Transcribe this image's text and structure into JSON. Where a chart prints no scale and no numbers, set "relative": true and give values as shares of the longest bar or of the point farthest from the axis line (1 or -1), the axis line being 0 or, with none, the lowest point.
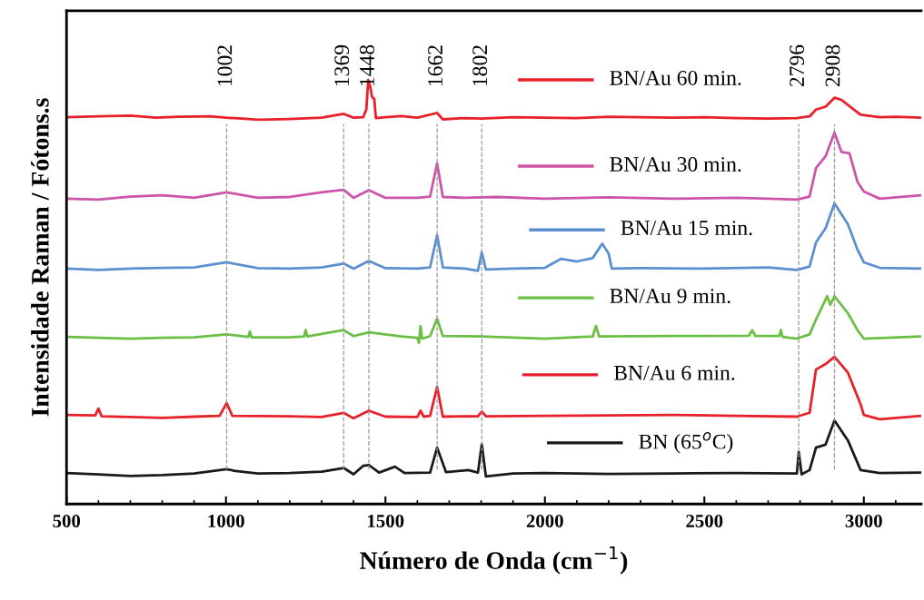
{
  "chart_data": {
    "type": "line",
    "relative": true,
    "xlabel": "Número de Onda (cm$^{−1}$)",
    "ylabel": "Intensidade Raman / Fótons.s",
    "xlim": [
      500,
      3180
    ],
    "xticks": [
      500,
      1000,
      1500,
      2000,
      2500,
      3000
    ],
    "grid": false,
    "legend": "right",
    "tick_labels": "x",
    "series": [
      {
        "name": "BN/Au 60 min.",
        "color": "#e8202a",
        "x": [
          500,
          600,
          700,
          780,
          850,
          950,
          1000,
          1050,
          1100,
          1200,
          1300,
          1369,
          1400,
          1430,
          1440,
          1446,
          1452,
          1458,
          1465,
          1470,
          1500,
          1550,
          1600,
          1662,
          1680,
          1750,
          1802,
          1900,
          2000,
          2100,
          2200,
          2300,
          2400,
          2500,
          2600,
          2700,
          2790,
          2830,
          2850,
          2880,
          2908,
          2930,
          2960,
          2990,
          3050,
          3100,
          3180
        ],
        "values": [
          0.912,
          0.914,
          0.916,
          0.911,
          0.913,
          0.914,
          0.911,
          0.909,
          0.906,
          0.908,
          0.911,
          0.92,
          0.911,
          0.912,
          0.93,
          1.0,
          0.985,
          0.96,
          0.955,
          0.91,
          0.912,
          0.915,
          0.911,
          0.922,
          0.907,
          0.91,
          0.909,
          0.912,
          0.911,
          0.91,
          0.913,
          0.912,
          0.911,
          0.912,
          0.91,
          0.909,
          0.91,
          0.914,
          0.93,
          0.937,
          0.958,
          0.953,
          0.935,
          0.918,
          0.912,
          0.913,
          0.911
        ]
      },
      {
        "name": "BN/Au 30 min.",
        "color": "#cc55aa",
        "x": [
          500,
          600,
          700,
          800,
          900,
          1002,
          1100,
          1200,
          1300,
          1369,
          1400,
          1448,
          1500,
          1600,
          1640,
          1662,
          1680,
          1750,
          1850,
          2000,
          2200,
          2400,
          2600,
          2700,
          2790,
          2830,
          2850,
          2880,
          2908,
          2930,
          2955,
          2980,
          3000,
          3050,
          3180
        ],
        "values": [
          0.72,
          0.718,
          0.725,
          0.728,
          0.722,
          0.735,
          0.722,
          0.724,
          0.735,
          0.741,
          0.722,
          0.74,
          0.722,
          0.722,
          0.725,
          0.803,
          0.724,
          0.722,
          0.724,
          0.72,
          0.723,
          0.72,
          0.722,
          0.72,
          0.718,
          0.725,
          0.792,
          0.82,
          0.876,
          0.83,
          0.827,
          0.76,
          0.737,
          0.72,
          0.728
        ]
      },
      {
        "name": "BN/Au 15 min.",
        "color": "#5b8fd0",
        "x": [
          500,
          600,
          700,
          800,
          900,
          1002,
          1100,
          1200,
          1300,
          1369,
          1400,
          1448,
          1500,
          1600,
          1640,
          1662,
          1680,
          1750,
          1790,
          1802,
          1815,
          1900,
          2000,
          2050,
          2100,
          2150,
          2180,
          2200,
          2210,
          2300,
          2500,
          2700,
          2790,
          2830,
          2850,
          2880,
          2908,
          2950,
          2980,
          3000,
          3050,
          3180
        ],
        "values": [
          0.555,
          0.552,
          0.555,
          0.557,
          0.558,
          0.57,
          0.556,
          0.555,
          0.558,
          0.567,
          0.555,
          0.573,
          0.556,
          0.555,
          0.558,
          0.634,
          0.558,
          0.555,
          0.55,
          0.593,
          0.553,
          0.555,
          0.557,
          0.578,
          0.572,
          0.58,
          0.614,
          0.59,
          0.555,
          0.556,
          0.555,
          0.558,
          0.552,
          0.56,
          0.617,
          0.65,
          0.709,
          0.66,
          0.6,
          0.57,
          0.557,
          0.555
        ]
      },
      {
        "name": "BN/Au 9 min.",
        "color": "#6bbf45",
        "x": [
          500,
          600,
          700,
          800,
          900,
          1002,
          1070,
          1075,
          1080,
          1200,
          1245,
          1250,
          1255,
          1369,
          1400,
          1448,
          1550,
          1600,
          1605,
          1610,
          1615,
          1640,
          1662,
          1680,
          1800,
          2000,
          2150,
          2160,
          2170,
          2400,
          2640,
          2650,
          2660,
          2735,
          2740,
          2745,
          2790,
          2830,
          2850,
          2885,
          2895,
          2908,
          2950,
          2980,
          3000,
          3180
        ],
        "values": [
          0.394,
          0.392,
          0.39,
          0.392,
          0.393,
          0.4,
          0.394,
          0.407,
          0.393,
          0.393,
          0.395,
          0.41,
          0.395,
          0.41,
          0.396,
          0.405,
          0.395,
          0.392,
          0.38,
          0.42,
          0.39,
          0.396,
          0.437,
          0.396,
          0.395,
          0.39,
          0.395,
          0.42,
          0.395,
          0.396,
          0.397,
          0.41,
          0.396,
          0.396,
          0.41,
          0.394,
          0.39,
          0.4,
          0.435,
          0.49,
          0.47,
          0.49,
          0.45,
          0.41,
          0.39,
          0.395
        ]
      },
      {
        "name": "BN/Au 6 min.",
        "color": "#e8202a",
        "x": [
          500,
          590,
          600,
          610,
          700,
          800,
          900,
          980,
          1002,
          1020,
          1200,
          1300,
          1369,
          1400,
          1448,
          1500,
          1600,
          1610,
          1620,
          1640,
          1662,
          1680,
          1790,
          1802,
          1815,
          2000,
          2200,
          2400,
          2600,
          2790,
          2830,
          2850,
          2880,
          2908,
          2950,
          2990,
          3000,
          3050,
          3180
        ],
        "values": [
          0.21,
          0.209,
          0.225,
          0.207,
          0.205,
          0.203,
          0.206,
          0.208,
          0.238,
          0.208,
          0.207,
          0.205,
          0.215,
          0.202,
          0.22,
          0.206,
          0.205,
          0.22,
          0.206,
          0.208,
          0.276,
          0.206,
          0.207,
          0.218,
          0.207,
          0.208,
          0.209,
          0.21,
          0.208,
          0.206,
          0.215,
          0.317,
          0.33,
          0.347,
          0.31,
          0.235,
          0.21,
          0.2,
          0.208
        ]
      },
      {
        "name": "BN (65$^{o}$C)",
        "color": "#1a1a1a",
        "x": [
          500,
          600,
          700,
          800,
          900,
          1002,
          1030,
          1100,
          1200,
          1300,
          1369,
          1400,
          1430,
          1448,
          1480,
          1530,
          1560,
          1640,
          1662,
          1690,
          1760,
          1790,
          1802,
          1815,
          1900,
          2000,
          2200,
          2400,
          2600,
          2790,
          2796,
          2805,
          2830,
          2850,
          2880,
          2908,
          2950,
          2990,
          3050,
          3180
        ],
        "values": [
          0.073,
          0.07,
          0.066,
          0.068,
          0.072,
          0.082,
          0.078,
          0.072,
          0.073,
          0.076,
          0.085,
          0.07,
          0.09,
          0.092,
          0.074,
          0.088,
          0.073,
          0.074,
          0.133,
          0.075,
          0.08,
          0.074,
          0.141,
          0.065,
          0.072,
          0.073,
          0.071,
          0.072,
          0.073,
          0.072,
          0.122,
          0.07,
          0.08,
          0.133,
          0.14,
          0.197,
          0.15,
          0.08,
          0.073,
          0.074
        ]
      }
    ],
    "ref_lines": [
      {
        "axis": "x",
        "value": 1002,
        "label": "1002",
        "color": "#999999",
        "line_style": "dashed"
      },
      {
        "axis": "x",
        "value": 1369,
        "label": "1369",
        "color": "#999999",
        "line_style": "dashed"
      },
      {
        "axis": "x",
        "value": 1448,
        "label": "1448",
        "color": "#999999",
        "line_style": "dashed"
      },
      {
        "axis": "x",
        "value": 1662,
        "label": "1662",
        "color": "#999999",
        "line_style": "dashed"
      },
      {
        "axis": "x",
        "value": 1802,
        "label": "1802",
        "color": "#999999",
        "line_style": "dashed"
      },
      {
        "axis": "x",
        "value": 2796,
        "label": "2796",
        "color": "#999999",
        "line_style": "dashed"
      },
      {
        "axis": "x",
        "value": 2908,
        "label": "2908",
        "color": "#999999",
        "line_style": "dashed"
      }
    ]
  }
}
